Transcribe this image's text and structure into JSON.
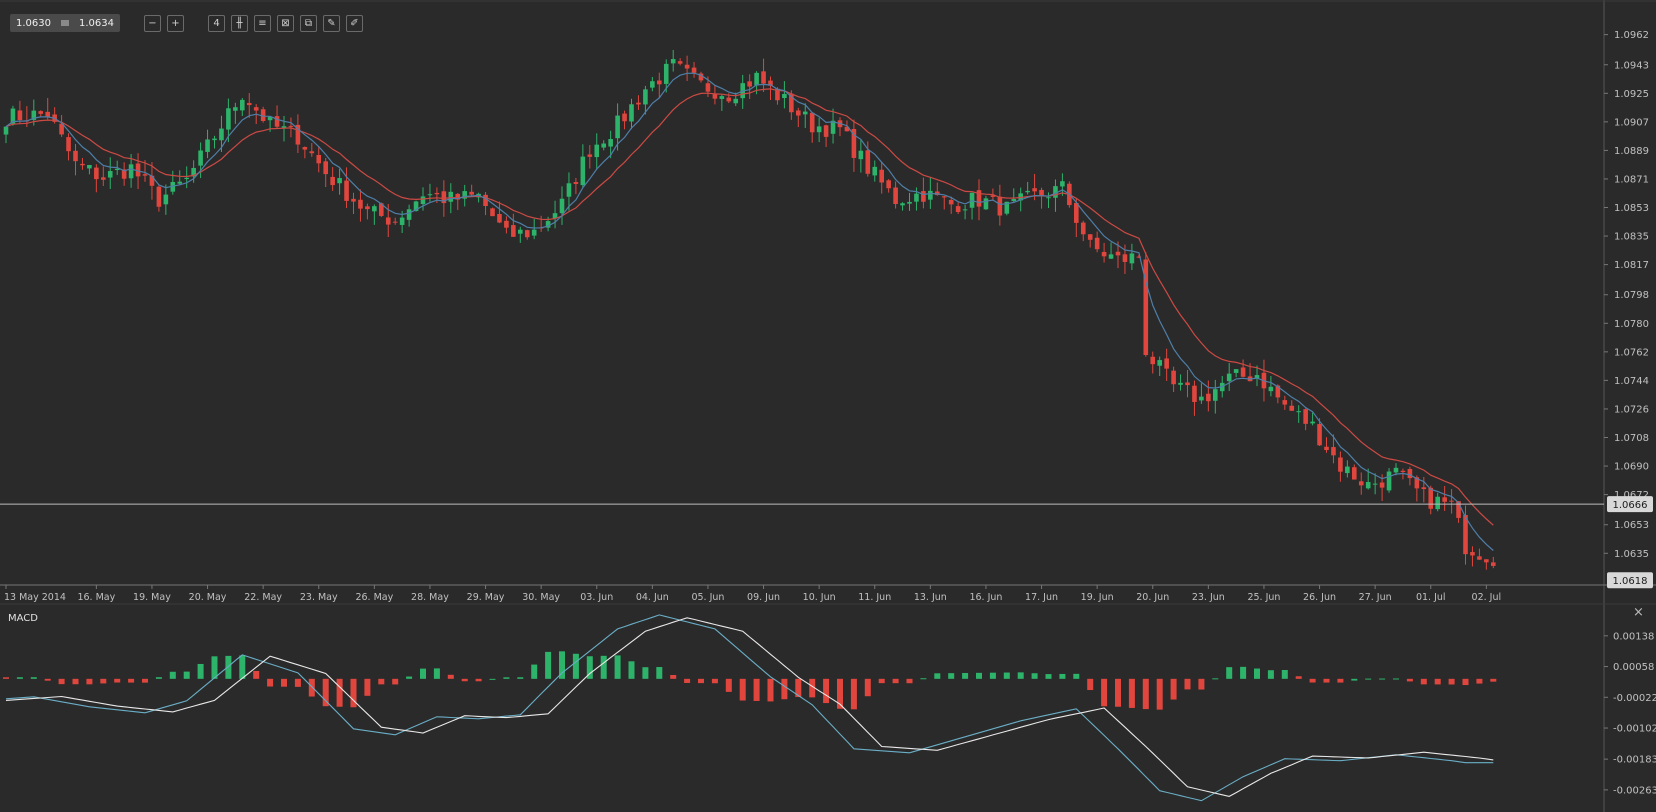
{
  "toolbar": {
    "bid": "1.0630",
    "ask": "1.0634",
    "buttons": [
      {
        "name": "zoom-out-icon",
        "glyph": "−"
      },
      {
        "name": "zoom-in-icon",
        "glyph": "+"
      },
      {
        "name": "timeframe-icon",
        "glyph": "4"
      },
      {
        "name": "candlestick-icon",
        "glyph": "╫"
      },
      {
        "name": "indicators-icon",
        "glyph": "≡"
      },
      {
        "name": "chart-settings-icon",
        "glyph": "⊠"
      },
      {
        "name": "copy-icon",
        "glyph": "⧉"
      },
      {
        "name": "draw-icon",
        "glyph": "✎"
      },
      {
        "name": "pencil-icon",
        "glyph": "✐"
      }
    ]
  },
  "macd_panel": {
    "title": "MACD",
    "close_glyph": "×"
  },
  "colors": {
    "background": "#2a2a2a",
    "up": "#2db36a",
    "down": "#e0463e",
    "ma_fast": "#4f7fa8",
    "ma_slow": "#cc4a44",
    "macd_line": "#e8e8e8",
    "signal_line": "#6aaec6",
    "axis_text": "#c0c0c0"
  },
  "chart_data": [
    {
      "type": "candlestick",
      "title": "",
      "ylim": [
        1.0615,
        1.0975
      ],
      "y_ticks": [
        "1.0962",
        "1.0943",
        "1.0925",
        "1.0907",
        "1.0889",
        "1.0871",
        "1.0853",
        "1.0835",
        "1.0817",
        "1.0798",
        "1.0780",
        "1.0762",
        "1.0744",
        "1.0726",
        "1.0708",
        "1.0690",
        "1.0672",
        "1.0653",
        "1.0635"
      ],
      "x_labels": [
        {
          "i": 0,
          "label": "13 May 2014"
        },
        {
          "i": 13,
          "label": "16. May"
        },
        {
          "i": 21,
          "label": "19. May"
        },
        {
          "i": 29,
          "label": "20. May"
        },
        {
          "i": 37,
          "label": "22. May"
        },
        {
          "i": 45,
          "label": "23. May"
        },
        {
          "i": 53,
          "label": "26. May"
        },
        {
          "i": 61,
          "label": "28. May"
        },
        {
          "i": 69,
          "label": "29. May"
        },
        {
          "i": 77,
          "label": "30. May"
        },
        {
          "i": 85,
          "label": "03. Jun"
        },
        {
          "i": 93,
          "label": "04. Jun"
        },
        {
          "i": 101,
          "label": "05. Jun"
        },
        {
          "i": 109,
          "label": "09. Jun"
        },
        {
          "i": 117,
          "label": "10. Jun"
        },
        {
          "i": 125,
          "label": "11. Jun"
        },
        {
          "i": 133,
          "label": "13. Jun"
        },
        {
          "i": 141,
          "label": "16. Jun"
        },
        {
          "i": 149,
          "label": "17. Jun"
        },
        {
          "i": 157,
          "label": "19. Jun"
        },
        {
          "i": 165,
          "label": "20. Jun"
        },
        {
          "i": 173,
          "label": "23. Jun"
        },
        {
          "i": 181,
          "label": "25. Jun"
        },
        {
          "i": 189,
          "label": "26. Jun"
        },
        {
          "i": 197,
          "label": "27. Jun"
        },
        {
          "i": 205,
          "label": "01. Jul"
        },
        {
          "i": 213,
          "label": "02. Jul"
        }
      ],
      "price_line": {
        "value": 1.0666,
        "label": "1.0666"
      },
      "last_price": {
        "value": 1.0618,
        "label": "1.0618"
      },
      "anchors": [
        [
          0,
          1.091
        ],
        [
          6,
          1.0912
        ],
        [
          10,
          1.088
        ],
        [
          14,
          1.0872
        ],
        [
          18,
          1.0878
        ],
        [
          22,
          1.0858
        ],
        [
          26,
          1.087
        ],
        [
          30,
          1.0898
        ],
        [
          34,
          1.0925
        ],
        [
          38,
          1.0905
        ],
        [
          42,
          1.0898
        ],
        [
          46,
          1.0875
        ],
        [
          52,
          1.085
        ],
        [
          56,
          1.0845
        ],
        [
          60,
          1.0862
        ],
        [
          64,
          1.0858
        ],
        [
          68,
          1.086
        ],
        [
          72,
          1.0835
        ],
        [
          76,
          1.0838
        ],
        [
          80,
          1.0855
        ],
        [
          84,
          1.089
        ],
        [
          88,
          1.0905
        ],
        [
          92,
          1.0928
        ],
        [
          96,
          1.0942
        ],
        [
          100,
          1.093
        ],
        [
          104,
          1.0925
        ],
        [
          108,
          1.0935
        ],
        [
          112,
          1.092
        ],
        [
          116,
          1.0905
        ],
        [
          120,
          1.0902
        ],
        [
          124,
          1.0878
        ],
        [
          128,
          1.0858
        ],
        [
          132,
          1.0862
        ],
        [
          136,
          1.0855
        ],
        [
          140,
          1.0858
        ],
        [
          144,
          1.0852
        ],
        [
          148,
          1.086
        ],
        [
          152,
          1.0865
        ],
        [
          156,
          1.0828
        ],
        [
          160,
          1.082
        ],
        [
          163,
          1.0822
        ],
        [
          164,
          1.0762
        ],
        [
          168,
          1.074
        ],
        [
          172,
          1.0732
        ],
        [
          176,
          1.0745
        ],
        [
          180,
          1.0748
        ],
        [
          184,
          1.0728
        ],
        [
          188,
          1.0715
        ],
        [
          192,
          1.069
        ],
        [
          196,
          1.0678
        ],
        [
          200,
          1.0685
        ],
        [
          204,
          1.067
        ],
        [
          208,
          1.0665
        ],
        [
          210,
          1.064
        ],
        [
          214,
          1.0632
        ]
      ]
    },
    {
      "type": "macd",
      "title": "MACD",
      "ylim": [
        -0.00305,
        0.002
      ],
      "y_ticks": [
        "0.00138",
        "0.00058",
        "-0.00022",
        "-0.00102",
        "-0.00183",
        "-0.00263"
      ],
      "anchors": [
        [
          0,
          -0.0003
        ],
        [
          8,
          -0.0002
        ],
        [
          16,
          -0.00045
        ],
        [
          24,
          -0.0006
        ],
        [
          30,
          -0.0003
        ],
        [
          38,
          0.00085
        ],
        [
          46,
          0.0004
        ],
        [
          54,
          -0.001
        ],
        [
          60,
          -0.00115
        ],
        [
          66,
          -0.0007
        ],
        [
          72,
          -0.00075
        ],
        [
          78,
          -0.00065
        ],
        [
          84,
          0.0004
        ],
        [
          92,
          0.0015
        ],
        [
          98,
          0.00185
        ],
        [
          106,
          0.0015
        ],
        [
          114,
          0.0003
        ],
        [
          120,
          -0.0004
        ],
        [
          126,
          -0.0015
        ],
        [
          134,
          -0.0016
        ],
        [
          142,
          -0.0012
        ],
        [
          150,
          -0.0008
        ],
        [
          158,
          -0.0005
        ],
        [
          164,
          -0.0015
        ],
        [
          170,
          -0.00255
        ],
        [
          176,
          -0.0028
        ],
        [
          182,
          -0.0022
        ],
        [
          188,
          -0.00175
        ],
        [
          196,
          -0.0018
        ],
        [
          204,
          -0.00165
        ],
        [
          212,
          -0.0018
        ],
        [
          214,
          -0.00185
        ]
      ]
    }
  ]
}
